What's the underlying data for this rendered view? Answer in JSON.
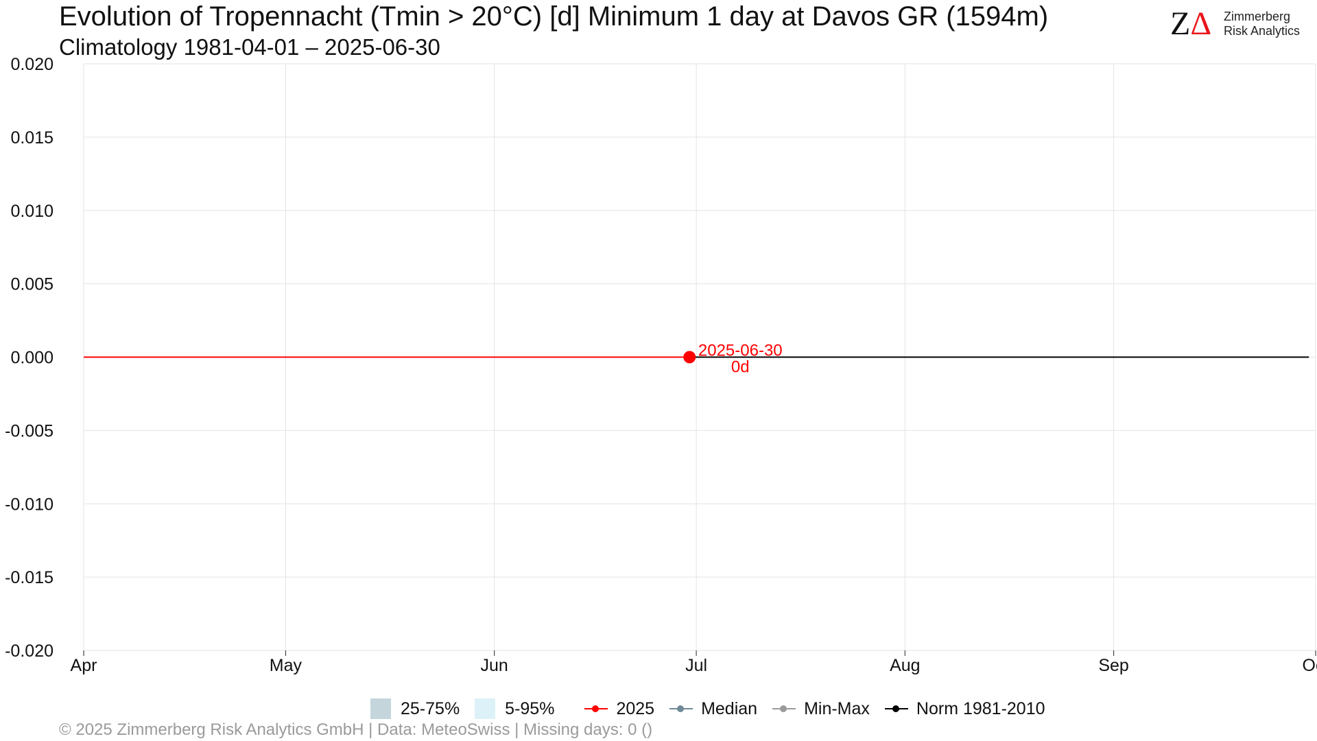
{
  "title": "Evolution of Tropennacht (Tmin > 20°C) [d] Minimum 1 day at Davos  GR (1594m)",
  "subtitle": "Climatology 1981-04-01 – 2025-06-30",
  "logo": {
    "mark_z": "Z",
    "mark_delta": "Δ",
    "line1": "Zimmerberg",
    "line2": "Risk Analytics"
  },
  "footer": "©  2025 Zimmerberg Risk Analytics GmbH | Data: MeteoSwiss | Missing days: 0 ()",
  "legend": {
    "band_25_75": "25-75%",
    "band_5_95": "5-95%",
    "current": "2025",
    "median": "Median",
    "minmax": "Min-Max",
    "norm": "Norm 1981-2010"
  },
  "colors": {
    "current": "#ff0000",
    "norm": "#000000",
    "median": "#6e8a96",
    "minmax": "#9a9a9a",
    "band_25_75": "#c4d6dc",
    "band_5_95": "#ddf1f8",
    "grid": "#e3e3e3"
  },
  "chart_data": {
    "type": "line",
    "title": "Evolution of Tropennacht (Tmin > 20°C) [d] Minimum 1 day at Davos  GR (1594m)",
    "xlim": [
      "2025-04-01",
      "2025-10-01"
    ],
    "ylim": [
      -0.02,
      0.02
    ],
    "y_ticks": [
      "0.020",
      "0.015",
      "0.010",
      "0.005",
      "0.000",
      "-0.005",
      "-0.010",
      "-0.015",
      "-0.020"
    ],
    "y_tick_values": [
      0.02,
      0.015,
      0.01,
      0.005,
      0,
      -0.005,
      -0.01,
      -0.015,
      -0.02
    ],
    "x_ticks": [
      {
        "label": "Apr",
        "date": "2025-04-01"
      },
      {
        "label": "May",
        "date": "2025-05-01"
      },
      {
        "label": "Jun",
        "date": "2025-06-01"
      },
      {
        "label": "Jul",
        "date": "2025-07-01"
      },
      {
        "label": "Aug",
        "date": "2025-08-01"
      },
      {
        "label": "Sep",
        "date": "2025-09-01"
      },
      {
        "label": "Oct",
        "date": "2025-10-01"
      }
    ],
    "grid": true,
    "legend_position": "bottom",
    "series": [
      {
        "name": "2025",
        "x": [
          "2025-04-01",
          "2025-06-30"
        ],
        "y": [
          0,
          0
        ]
      },
      {
        "name": "Norm 1981-2010",
        "x": [
          "2025-06-30",
          "2025-09-30"
        ],
        "y": [
          0,
          0
        ]
      }
    ],
    "annotation": {
      "x": "2025-06-30",
      "y": 0,
      "date_label": "2025-06-30",
      "value_label": "0d"
    }
  }
}
